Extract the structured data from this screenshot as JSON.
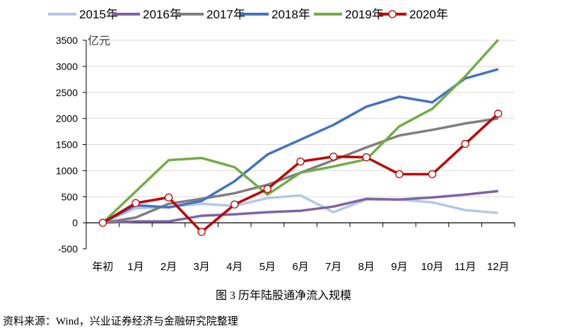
{
  "chart_data": {
    "type": "line",
    "title": "图 3  历年陆股通净流入规模",
    "ylabel": "亿元",
    "xlabel": "",
    "categories": [
      "年初",
      "1月",
      "2月",
      "3月",
      "4月",
      "5月",
      "6月",
      "7月",
      "8月",
      "9月",
      "10月",
      "11月",
      "12月"
    ],
    "ylim": [
      -500,
      3500
    ],
    "yticks": [
      -500,
      0,
      500,
      1000,
      1500,
      2000,
      2500,
      3000,
      3500
    ],
    "grid": true,
    "legend_position": "top",
    "series": [
      {
        "name": "2015年",
        "color": "#b4c7e7",
        "markers": false,
        "values": [
          0,
          280,
          300,
          365,
          324,
          473,
          527,
          203,
          446,
          446,
          392,
          243,
          189
        ]
      },
      {
        "name": "2016年",
        "color": "#7f63a6",
        "markers": false,
        "values": [
          0,
          27,
          27,
          135,
          162,
          203,
          230,
          311,
          459,
          446,
          486,
          540,
          608
        ]
      },
      {
        "name": "2017年",
        "color": "#7f7f7f",
        "markers": false,
        "values": [
          0,
          100,
          365,
          459,
          567,
          729,
          960,
          1200,
          1445,
          1675,
          1782,
          1905,
          2000
        ]
      },
      {
        "name": "2018年",
        "color": "#4472c4",
        "markers": false,
        "values": [
          0,
          338,
          297,
          419,
          797,
          1310,
          1594,
          1877,
          2228,
          2418,
          2310,
          2768,
          2945
        ]
      },
      {
        "name": "2019年",
        "color": "#70ad47",
        "markers": false,
        "values": [
          0,
          600,
          1202,
          1243,
          1067,
          540,
          960,
          1080,
          1216,
          1850,
          2187,
          2810,
          3510
        ]
      },
      {
        "name": "2020年",
        "color": "#c00000",
        "markers": true,
        "values": [
          0,
          378,
          486,
          -175,
          351,
          648,
          1175,
          1270,
          1256,
          932,
          932,
          1513,
          2094
        ]
      }
    ]
  },
  "caption": "图 3  历年陆股通净流入规模",
  "source": "资料来源：Wind，兴业证券经济与金融研究院整理"
}
